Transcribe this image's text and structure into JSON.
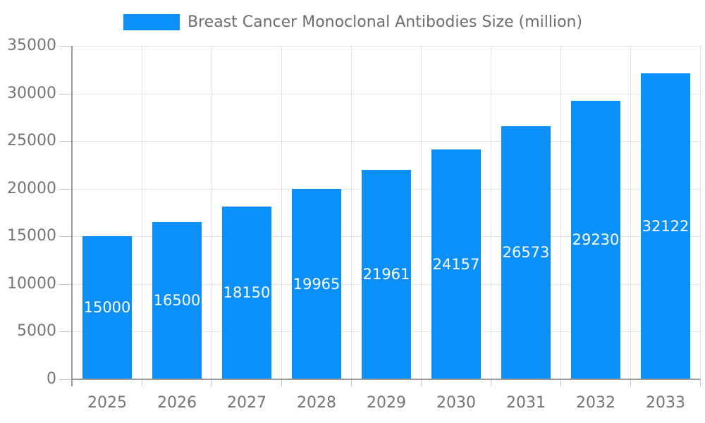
{
  "legend": {
    "label": "Breast Cancer Monoclonal Antibodies Size (million)"
  },
  "chart_data": {
    "type": "bar",
    "title": "Breast Cancer Monoclonal Antibodies Size (million)",
    "series_name": "Breast Cancer Monoclonal Antibodies Size (million)",
    "categories": [
      "2025",
      "2026",
      "2027",
      "2028",
      "2029",
      "2030",
      "2031",
      "2032",
      "2033"
    ],
    "values": [
      15000,
      16500,
      18150,
      19965,
      21961,
      24157,
      26573,
      29230,
      32122
    ],
    "value_labels": [
      "15000",
      "16500",
      "18150",
      "19965",
      "21961",
      "24157",
      "26573",
      "29230",
      "32122"
    ],
    "xlabel": "",
    "ylabel": "",
    "ylim": [
      0,
      35000
    ],
    "yticks": [
      0,
      5000,
      10000,
      15000,
      20000,
      25000,
      30000,
      35000
    ],
    "ytick_labels": [
      "0",
      "5000",
      "10000",
      "15000",
      "20000",
      "25000",
      "30000",
      "35000"
    ],
    "grid": true,
    "legend_position": "top",
    "value_label_position": "center-of-bar"
  },
  "colors": {
    "bar": "#0a90f8",
    "bar_value_text": "#ffffff",
    "axis_text": "#757575",
    "legend_text": "#6e6e6e",
    "grid_line": "#e2e2e2",
    "axis_line": "#9b9b9b",
    "tick_mark": "#c2c2c2",
    "background": "#ffffff"
  }
}
